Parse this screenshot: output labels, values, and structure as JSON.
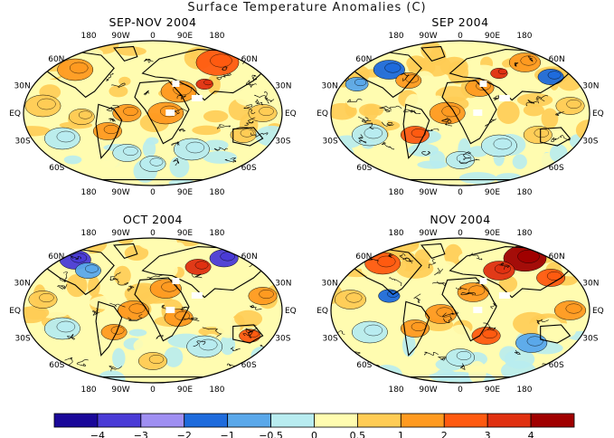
{
  "title": "Surface Temperature Anomalies (C)",
  "panels": [
    {
      "name": "SEP-NOV 2004",
      "dominant": "warm-moderate"
    },
    {
      "name": "SEP 2004",
      "dominant": "mixed"
    },
    {
      "name": "OCT 2004",
      "dominant": "mixed"
    },
    {
      "name": "NOV 2004",
      "dominant": "warm-strong"
    }
  ],
  "lon_labels": [
    "180",
    "90W",
    "0",
    "90E",
    "180"
  ],
  "lat_labels_left": [
    "60N",
    "30N",
    "EQ",
    "30S",
    "60S"
  ],
  "lat_labels_right": [
    "60N",
    "30N",
    "EQ",
    "30S",
    "60S"
  ],
  "colorbar": {
    "bounds": [
      "-4",
      "-3",
      "-2",
      "-1",
      "-0.5",
      "0",
      "0.5",
      "1",
      "2",
      "3",
      "4"
    ],
    "colors": [
      "#1a0899",
      "#4a3bd6",
      "#9f8ff2",
      "#1e6bdc",
      "#5aa8ea",
      "#b8ecf0",
      "#fffcb0",
      "#ffcc55",
      "#ff9a20",
      "#ff5a10",
      "#e03010",
      "#a00000"
    ]
  },
  "palette": {
    "land_outline": "#000000",
    "missing": "#ffffff",
    "border": "#000000"
  }
}
